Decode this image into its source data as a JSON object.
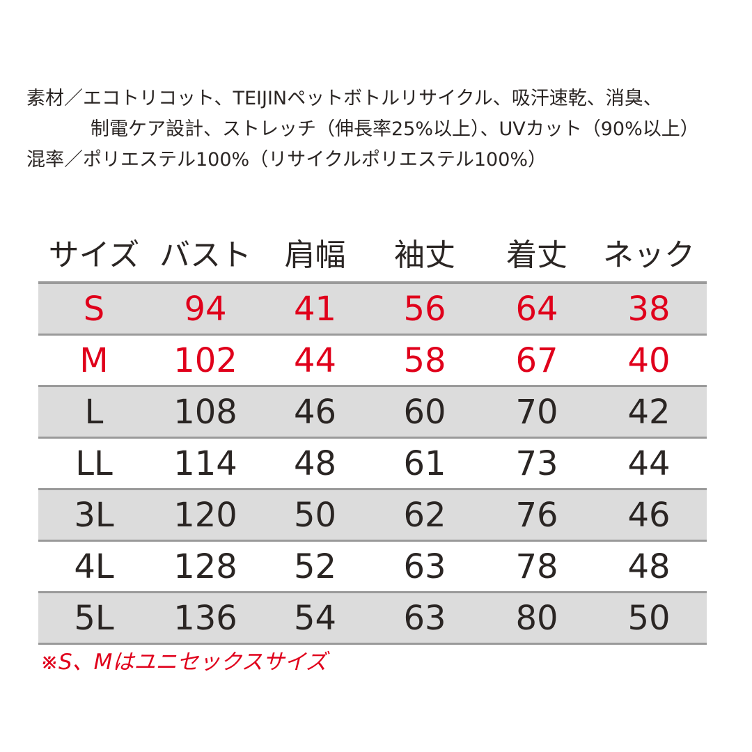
{
  "spec": {
    "line1": "素材／エコトリコット、TEIJINペットボトルリサイクル、吸汗速乾、消臭、",
    "line2": "制電ケア設計、ストレッチ（伸長率25%以上）、UVカット（90%以上）",
    "line3": "混率／ポリエステル100%（リサイクルポリエステル100%）"
  },
  "table": {
    "headers": [
      "サイズ",
      "バスト",
      "肩幅",
      "袖丈",
      "着丈",
      "ネック"
    ],
    "rows": [
      {
        "size": "S",
        "values": [
          "94",
          "41",
          "56",
          "64",
          "38"
        ]
      },
      {
        "size": "M",
        "values": [
          "102",
          "44",
          "58",
          "67",
          "40"
        ]
      },
      {
        "size": "L",
        "values": [
          "108",
          "46",
          "60",
          "70",
          "42"
        ]
      },
      {
        "size": "LL",
        "values": [
          "114",
          "48",
          "61",
          "73",
          "44"
        ]
      },
      {
        "size": "3L",
        "values": [
          "120",
          "50",
          "62",
          "76",
          "46"
        ]
      },
      {
        "size": "4L",
        "values": [
          "128",
          "52",
          "63",
          "78",
          "48"
        ]
      },
      {
        "size": "5L",
        "values": [
          "136",
          "54",
          "63",
          "80",
          "50"
        ]
      }
    ]
  },
  "footnote": "※S、Mはユニセックスサイズ",
  "colors": {
    "accent_red": "#e0001b",
    "text_dark": "#2a2523",
    "row_shade": "#dcdcdc",
    "rule_gray": "#9a9a9a"
  }
}
